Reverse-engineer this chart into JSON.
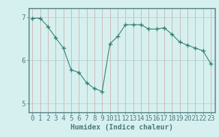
{
  "title": "",
  "xlabel": "Humidex (Indice chaleur)",
  "ylabel": "",
  "x_values": [
    0,
    1,
    2,
    3,
    4,
    5,
    6,
    7,
    8,
    9,
    10,
    11,
    12,
    13,
    14,
    15,
    16,
    17,
    18,
    19,
    20,
    21,
    22,
    23
  ],
  "y_values": [
    6.97,
    6.97,
    6.78,
    6.52,
    6.28,
    5.78,
    5.72,
    5.48,
    5.35,
    5.28,
    6.38,
    6.55,
    6.82,
    6.82,
    6.82,
    6.72,
    6.72,
    6.75,
    6.6,
    6.42,
    6.35,
    6.28,
    6.22,
    5.92
  ],
  "line_color": "#2e7d6e",
  "marker": "+",
  "marker_size": 4,
  "background_color": "#d6f0ef",
  "grid_color_major": "#b8cece",
  "grid_color_minor": "#cce0e0",
  "ylim": [
    4.8,
    7.2
  ],
  "yticks": [
    5,
    6,
    7
  ],
  "xlim": [
    -0.5,
    23.5
  ],
  "xticks": [
    0,
    1,
    2,
    3,
    4,
    5,
    6,
    7,
    8,
    9,
    10,
    11,
    12,
    13,
    14,
    15,
    16,
    17,
    18,
    19,
    20,
    21,
    22,
    23
  ],
  "axis_label_fontsize": 7.5,
  "tick_fontsize": 7,
  "spine_color": "#4a7a7a",
  "tick_color": "#4a7a7a"
}
